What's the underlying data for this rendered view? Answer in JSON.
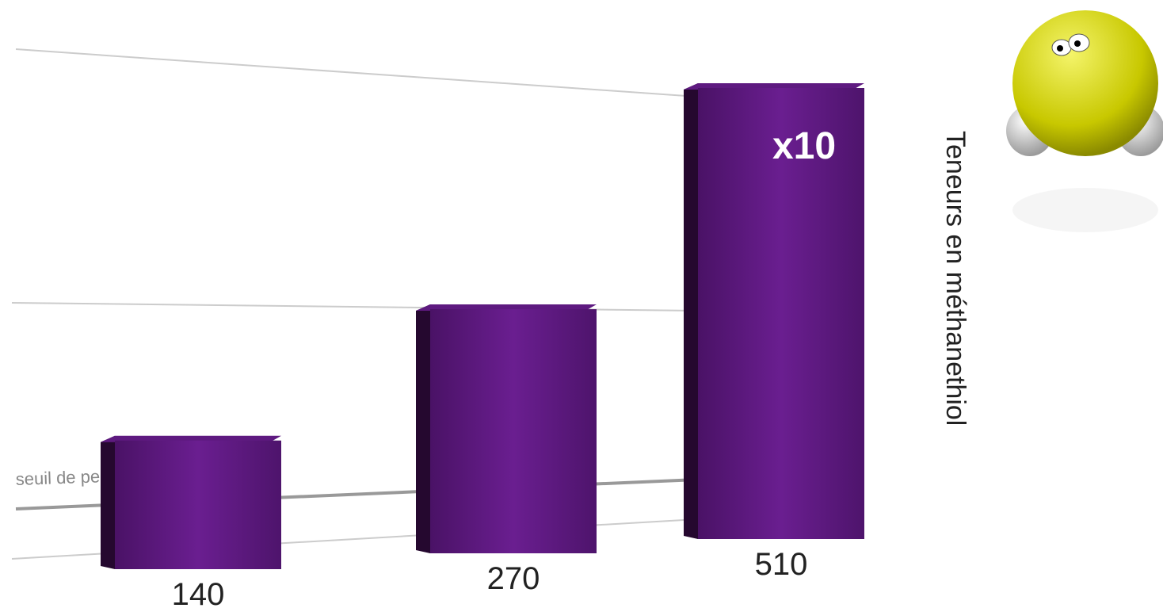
{
  "chart_data": {
    "type": "bar",
    "values": [
      140,
      270,
      510
    ],
    "color": "#5e1a80",
    "y_label": "Teneurs en méthanethiol",
    "annotations": [
      "x10",
      "seuil de perception"
    ]
  }
}
